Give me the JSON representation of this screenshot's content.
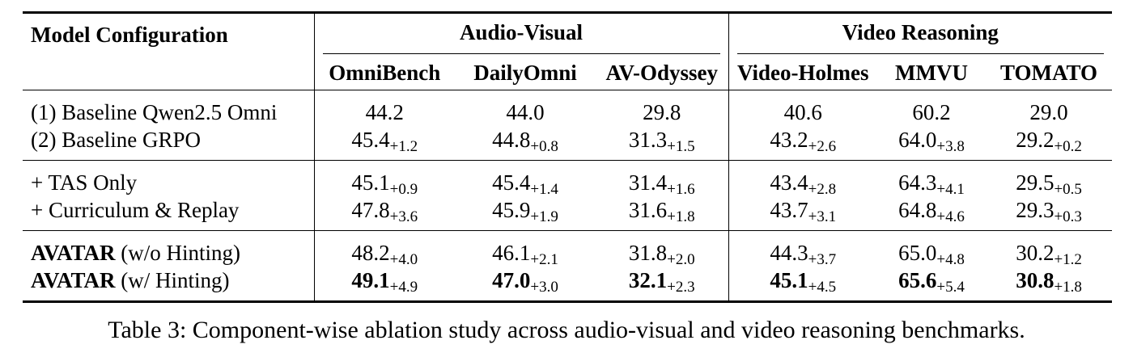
{
  "table": {
    "header": {
      "model_config": "Model Configuration",
      "group_av": "Audio-Visual",
      "group_vr": "Video Reasoning",
      "columns": [
        "OmniBench",
        "DailyOmni",
        "AV-Odyssey",
        "Video-Holmes",
        "MMVU",
        "TOMATO"
      ]
    },
    "sections": [
      [
        {
          "label_bold": "",
          "label": "(1) Baseline Qwen2.5 Omni",
          "cells": [
            {
              "v": "44.2",
              "d": ""
            },
            {
              "v": "44.0",
              "d": ""
            },
            {
              "v": "29.8",
              "d": ""
            },
            {
              "v": "40.6",
              "d": ""
            },
            {
              "v": "60.2",
              "d": ""
            },
            {
              "v": "29.0",
              "d": ""
            }
          ]
        },
        {
          "label_bold": "",
          "label": "(2) Baseline GRPO",
          "cells": [
            {
              "v": "45.4",
              "d": "+1.2"
            },
            {
              "v": "44.8",
              "d": "+0.8"
            },
            {
              "v": "31.3",
              "d": "+1.5"
            },
            {
              "v": "43.2",
              "d": "+2.6"
            },
            {
              "v": "64.0",
              "d": "+3.8"
            },
            {
              "v": "29.2",
              "d": "+0.2"
            }
          ]
        }
      ],
      [
        {
          "label_bold": "",
          "label": "+ TAS Only",
          "cells": [
            {
              "v": "45.1",
              "d": "+0.9"
            },
            {
              "v": "45.4",
              "d": "+1.4"
            },
            {
              "v": "31.4",
              "d": "+1.6"
            },
            {
              "v": "43.4",
              "d": "+2.8"
            },
            {
              "v": "64.3",
              "d": "+4.1"
            },
            {
              "v": "29.5",
              "d": "+0.5"
            }
          ]
        },
        {
          "label_bold": "",
          "label": "+ Curriculum & Replay",
          "cells": [
            {
              "v": "47.8",
              "d": "+3.6"
            },
            {
              "v": "45.9",
              "d": "+1.9"
            },
            {
              "v": "31.6",
              "d": "+1.8"
            },
            {
              "v": "43.7",
              "d": "+3.1"
            },
            {
              "v": "64.8",
              "d": "+4.6"
            },
            {
              "v": "29.3",
              "d": "+0.3"
            }
          ]
        }
      ],
      [
        {
          "label_bold": "AVATAR",
          "label": " (w/o Hinting)",
          "cells": [
            {
              "v": "48.2",
              "d": "+4.0"
            },
            {
              "v": "46.1",
              "d": "+2.1"
            },
            {
              "v": "31.8",
              "d": "+2.0"
            },
            {
              "v": "44.3",
              "d": "+3.7"
            },
            {
              "v": "65.0",
              "d": "+4.8"
            },
            {
              "v": "30.2",
              "d": "+1.2"
            }
          ]
        },
        {
          "label_bold": "AVATAR",
          "label": " (w/ Hinting)",
          "bold_values": true,
          "cells": [
            {
              "v": "49.1",
              "d": "+4.9"
            },
            {
              "v": "47.0",
              "d": "+3.0"
            },
            {
              "v": "32.1",
              "d": "+2.3"
            },
            {
              "v": "45.1",
              "d": "+4.5"
            },
            {
              "v": "65.6",
              "d": "+5.4"
            },
            {
              "v": "30.8",
              "d": "+1.8"
            }
          ]
        }
      ]
    ]
  },
  "caption": "Table 3: Component-wise ablation study across audio-visual and video reasoning benchmarks."
}
